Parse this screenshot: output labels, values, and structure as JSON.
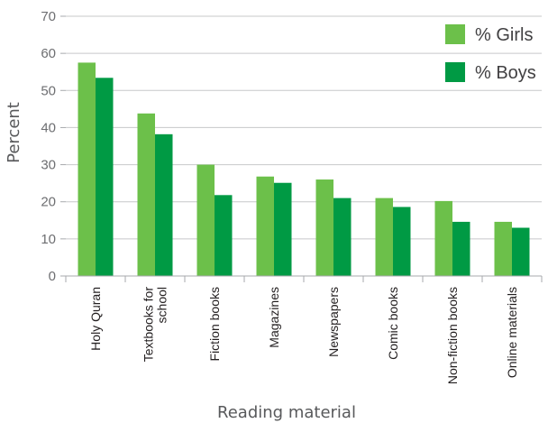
{
  "chart_data": {
    "type": "bar",
    "title": "",
    "xlabel": "Reading material",
    "ylabel": "Percent",
    "ylim": [
      0,
      70
    ],
    "yticks": [
      0,
      10,
      20,
      30,
      40,
      50,
      60,
      70
    ],
    "grid": true,
    "legend_position": "top-right",
    "categories": [
      [
        "Holy Quran"
      ],
      [
        "Textbooks for",
        "school"
      ],
      [
        "Fiction books"
      ],
      [
        "Magazines"
      ],
      [
        "Newspapers"
      ],
      [
        "Comic books"
      ],
      [
        "Non-fiction books"
      ],
      [
        "Online materials"
      ]
    ],
    "series": [
      {
        "name": "% Girls",
        "color": "#6cc04a",
        "values": [
          57.5,
          43.8,
          30.0,
          26.8,
          26.0,
          21.0,
          20.2,
          14.6
        ]
      },
      {
        "name": "% Boys",
        "color": "#009a44",
        "values": [
          53.4,
          38.2,
          21.8,
          25.1,
          21.0,
          18.6,
          14.6,
          13.0
        ]
      }
    ]
  }
}
